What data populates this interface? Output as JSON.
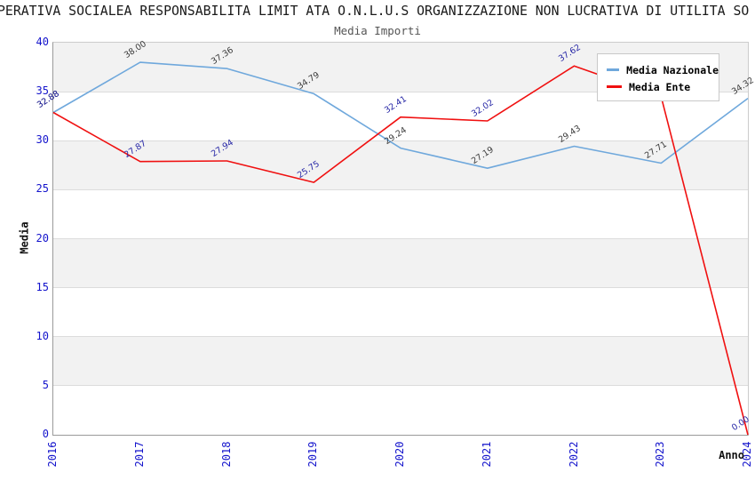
{
  "colors": {
    "tick_label": "#1414CC",
    "band": "#F2F2F2",
    "gridline": "#DCDCDC",
    "title_text": "#1A1A1A",
    "subtitle_text": "#555555"
  },
  "chart_data": {
    "type": "line",
    "title": "PERATIVA SOCIALEA RESPONSABILITA LIMIT ATA O.N.L.U.S ORGANIZZAZIONE NON LUCRATIVA DI UTILITA SO",
    "subtitle": "Media Importi",
    "xlabel": "Anno",
    "ylabel": "Media",
    "ylim": [
      0,
      40
    ],
    "yticks": [
      0,
      5,
      10,
      15,
      20,
      25,
      30,
      35,
      40
    ],
    "categories": [
      "2016",
      "2017",
      "2018",
      "2019",
      "2020",
      "2021",
      "2022",
      "2023",
      "2024"
    ],
    "grid": "horizontal-bands",
    "legend_position": "top-right",
    "series": [
      {
        "name": "Media Nazionale",
        "color": "#6FA8DC",
        "label_color": "#3A3A3A",
        "values": [
          32.88,
          38.0,
          37.36,
          34.79,
          29.24,
          27.19,
          29.43,
          27.71,
          34.32
        ],
        "labels": [
          "32.88",
          "38.00",
          "37.36",
          "34.79",
          "29.24",
          "27.19",
          "29.43",
          "27.71",
          "34.32"
        ]
      },
      {
        "name": "Media Ente",
        "color": "#F01010",
        "label_color": "#2626A6",
        "values": [
          32.88,
          27.87,
          27.94,
          25.75,
          32.41,
          32.02,
          37.62,
          34.5,
          0.0
        ],
        "labels": [
          "32.88",
          "27.87",
          "27.94",
          "25.75",
          "32.41",
          "32.02",
          "37.62",
          null,
          "0.00"
        ]
      }
    ]
  }
}
